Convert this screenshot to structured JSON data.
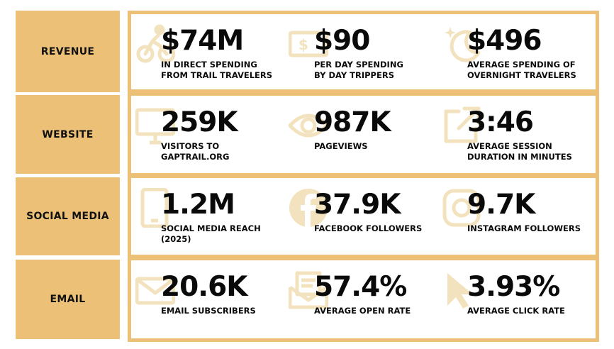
{
  "colors": {
    "accent": "#ecc177",
    "icon": "#f3e2be",
    "text": "#0a0a0a"
  },
  "rows": [
    {
      "label": "REVENUE",
      "stats": [
        {
          "value": "$74M",
          "line1": "IN DIRECT SPENDING",
          "line2": "FROM TRAIL TRAVELERS",
          "icon": "cyclist-icon"
        },
        {
          "value": "$90",
          "line1": "PER DAY SPENDING",
          "line2": "BY DAY TRIPPERS",
          "icon": "cash-icon"
        },
        {
          "value": "$496",
          "line1": "AVERAGE SPENDING OF",
          "line2": "OVERNIGHT TRAVELERS",
          "icon": "moon-stars-icon"
        }
      ]
    },
    {
      "label": "WEBSITE",
      "stats": [
        {
          "value": "259K",
          "line1": "VISITORS TO",
          "line2": "GAPTRAIL.ORG",
          "icon": "monitor-icon"
        },
        {
          "value": "987K",
          "line1": "PAGEVIEWS",
          "line2": "",
          "icon": "eye-icon"
        },
        {
          "value": "3:46",
          "line1": "AVERAGE SESSION",
          "line2": "DURATION IN MINUTES",
          "icon": "external-link-icon"
        }
      ]
    },
    {
      "label": "SOCIAL MEDIA",
      "stats": [
        {
          "value": "1.2M",
          "line1": "SOCIAL MEDIA REACH",
          "line2": "(2025)",
          "icon": "phone-icon"
        },
        {
          "value": "37.9K",
          "line1": "FACEBOOK FOLLOWERS",
          "line2": "",
          "icon": "facebook-icon"
        },
        {
          "value": "9.7K",
          "line1": "INSTAGRAM FOLLOWERS",
          "line2": "",
          "icon": "instagram-icon"
        }
      ]
    },
    {
      "label": "EMAIL",
      "stats": [
        {
          "value": "20.6K",
          "line1": "EMAIL SUBSCRIBERS",
          "line2": "",
          "icon": "envelope-icon"
        },
        {
          "value": "57.4%",
          "line1": "AVERAGE OPEN RATE",
          "line2": "",
          "icon": "open-letter-icon"
        },
        {
          "value": "3.93%",
          "line1": "AVERAGE CLICK RATE",
          "line2": "",
          "icon": "cursor-icon"
        }
      ]
    }
  ]
}
